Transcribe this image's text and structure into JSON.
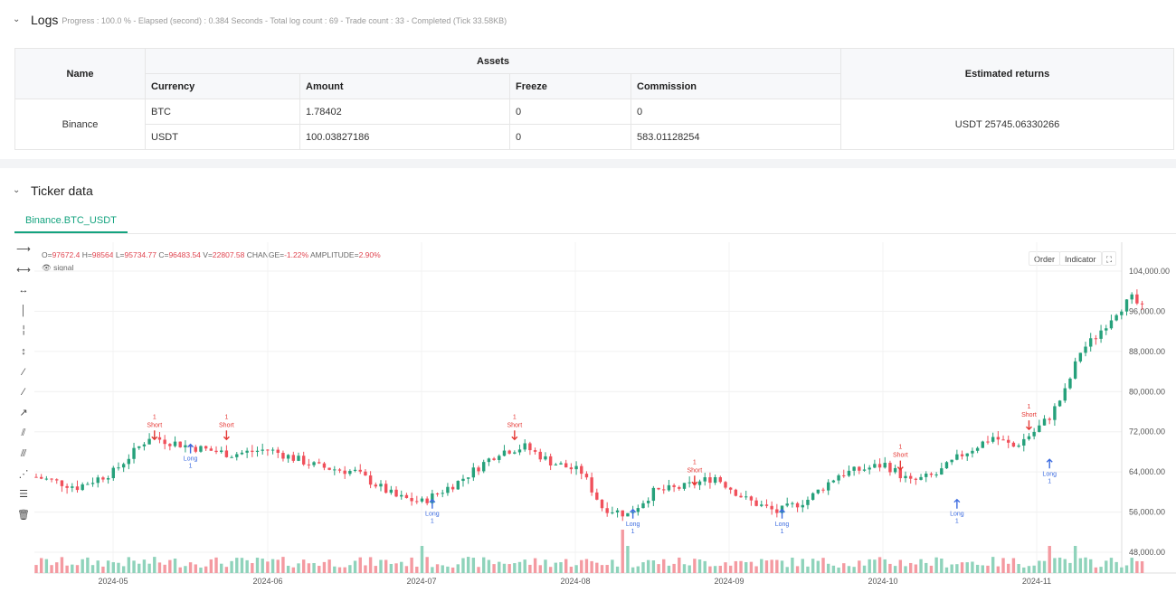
{
  "logs": {
    "title": "Logs",
    "progress_text": "Progress : 100.0 % - Elapsed (second) : 0.384   Seconds - Total log count : 69 - Trade count : 33 - Completed (Tick 33.58KB)",
    "table": {
      "col_name": "Name",
      "col_assets": "Assets",
      "col_returns": "Estimated returns",
      "sub_headers": [
        "Currency",
        "Amount",
        "Freeze",
        "Commission"
      ],
      "exchange": "Binance",
      "rows": [
        {
          "currency": "BTC",
          "amount": "1.78402",
          "freeze": "0",
          "commission": "0"
        },
        {
          "currency": "USDT",
          "amount": "100.03827186",
          "freeze": "0",
          "commission": "583.01128254"
        }
      ],
      "estimated_returns": "USDT 25745.06330266"
    }
  },
  "ticker": {
    "title": "Ticker data",
    "tab_label": "Binance.BTC_USDT",
    "ohlc": {
      "o": "97672.4",
      "h": "98564",
      "l": "95734.77",
      "c": "96483.54",
      "v": "22807.58",
      "change": "-1.22%",
      "amplitude": "2.90%"
    },
    "signal_label": "signal",
    "buttons": {
      "order": "Order",
      "indicator": "Indicator"
    }
  },
  "chart_data": {
    "type": "candlestick",
    "title": "Binance.BTC_USDT",
    "y_ticks": [
      "104,000.00",
      "96,000.00",
      "88,000.00",
      "80,000.00",
      "72,000.00",
      "64,000.00",
      "56,000.00",
      "48,000.00"
    ],
    "y_tick_values": [
      104000,
      96000,
      88000,
      80000,
      72000,
      64000,
      56000,
      48000
    ],
    "ylim": [
      46000,
      106000
    ],
    "x_ticks": [
      "2024-05",
      "2024-06",
      "2024-07",
      "2024-08",
      "2024-09",
      "2024-10",
      "2024-11"
    ],
    "days_total": 200,
    "anchors": [
      [
        0,
        63000
      ],
      [
        8,
        61000
      ],
      [
        15,
        64000
      ],
      [
        22,
        71000
      ],
      [
        30,
        69000
      ],
      [
        38,
        67500
      ],
      [
        45,
        68500
      ],
      [
        55,
        65000
      ],
      [
        62,
        64000
      ],
      [
        70,
        59000
      ],
      [
        75,
        58000
      ],
      [
        82,
        62000
      ],
      [
        90,
        68000
      ],
      [
        95,
        69000
      ],
      [
        100,
        66000
      ],
      [
        106,
        64000
      ],
      [
        110,
        57000
      ],
      [
        115,
        55500
      ],
      [
        120,
        60000
      ],
      [
        126,
        61000
      ],
      [
        132,
        63000
      ],
      [
        138,
        58500
      ],
      [
        144,
        56000
      ],
      [
        150,
        58500
      ],
      [
        156,
        63500
      ],
      [
        165,
        65500
      ],
      [
        170,
        62000
      ],
      [
        175,
        63500
      ],
      [
        180,
        67500
      ],
      [
        186,
        71000
      ],
      [
        190,
        69000
      ],
      [
        194,
        72000
      ],
      [
        197,
        75000
      ],
      [
        200,
        80000
      ],
      [
        203,
        88000
      ],
      [
        206,
        91000
      ],
      [
        210,
        96000
      ],
      [
        213,
        98500
      ],
      [
        215,
        96500
      ]
    ],
    "signals": [
      {
        "type": "Short",
        "count": "1",
        "day": 23,
        "price": 71000
      },
      {
        "type": "Short",
        "count": "1",
        "day": 37,
        "price": 71000
      },
      {
        "type": "Long",
        "count": "1",
        "day": 30,
        "price": 69500
      },
      {
        "type": "Long",
        "count": "1",
        "day": 77,
        "price": 58500
      },
      {
        "type": "Short",
        "count": "1",
        "day": 93,
        "price": 71000
      },
      {
        "type": "Long",
        "count": "1",
        "day": 116,
        "price": 56500
      },
      {
        "type": "Short",
        "count": "1",
        "day": 128,
        "price": 62000
      },
      {
        "type": "Long",
        "count": "1",
        "day": 145,
        "price": 56500
      },
      {
        "type": "Short",
        "count": "1",
        "day": 168,
        "price": 65000
      },
      {
        "type": "Long",
        "count": "1",
        "day": 179,
        "price": 58500
      },
      {
        "type": "Short",
        "count": "1",
        "day": 193,
        "price": 73000
      },
      {
        "type": "Long",
        "count": "1",
        "day": 197,
        "price": 66500
      }
    ],
    "colors": {
      "up": "#26a17b",
      "down": "#f0505b",
      "long": "#3d6ce0",
      "short": "#e53935"
    }
  }
}
